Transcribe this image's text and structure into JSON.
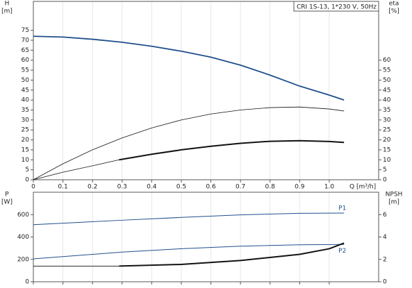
{
  "chart_data": [
    {
      "type": "line",
      "title": "CRI 1S-13, 1*230 V, 50Hz",
      "ylabel": "H",
      "yunit": "[m]",
      "y2label": "eta",
      "y2unit": "[%]",
      "xlabel": "Q [m³/h]",
      "xlim": [
        0,
        1.167
      ],
      "xticks": [
        0,
        0.1,
        0.2,
        0.3,
        0.4,
        0.5,
        0.6,
        0.7,
        0.8,
        0.9,
        {
          "value": 1,
          "label": "1.0"
        }
      ],
      "ylim": [
        0,
        89.5
      ],
      "yticks": [
        0,
        5,
        10,
        15,
        20,
        25,
        30,
        35,
        40,
        45,
        50,
        55,
        60,
        65,
        70,
        75
      ],
      "y2lim": [
        0,
        89.5
      ],
      "y2ticks": [
        0,
        5,
        10,
        15,
        20,
        25,
        30,
        35,
        40,
        45,
        50,
        55,
        60
      ],
      "grid": true,
      "series": [
        {
          "color": "#1f4e8c",
          "width": 1.8,
          "x": [
            0,
            0.1,
            0.2,
            0.3,
            0.4,
            0.5,
            0.6,
            0.7,
            0.8,
            0.9,
            1.0,
            1.05
          ],
          "values": [
            72,
            71.6,
            70.5,
            69,
            67,
            64.5,
            61.5,
            57.5,
            52.5,
            47,
            42.5,
            40
          ]
        },
        {
          "color": "#111111",
          "width": 0.8,
          "axis": "y2",
          "x": [
            0,
            0.1,
            0.2,
            0.3,
            0.4,
            0.5,
            0.6,
            0.7,
            0.8,
            0.9,
            1.0,
            1.05
          ],
          "values": [
            0,
            8,
            15,
            21,
            26,
            30,
            33,
            35,
            36.2,
            36.5,
            35.5,
            34.5
          ]
        },
        {
          "color": "#111111",
          "width": 0.8,
          "axis": "y2",
          "x": [
            0,
            0.1,
            0.2,
            0.29
          ],
          "values": [
            0,
            3.8,
            7,
            10
          ]
        },
        {
          "color": "#111111",
          "width": 2,
          "axis": "y2",
          "x": [
            0.29,
            0.4,
            0.5,
            0.6,
            0.7,
            0.8,
            0.9,
            1.0,
            1.05
          ],
          "values": [
            10,
            12.8,
            15,
            16.8,
            18.3,
            19.3,
            19.6,
            19.2,
            18.7
          ]
        }
      ]
    },
    {
      "type": "line",
      "ylabel": "P",
      "yunit": "[W]",
      "y2label": "NPSH",
      "y2unit": "[m]",
      "xlim": [
        0,
        1.167
      ],
      "xticks": [
        0,
        0.1,
        0.2,
        0.3,
        0.4,
        0.5,
        0.6,
        0.7,
        0.8,
        0.9,
        1
      ],
      "ylim": [
        0,
        800
      ],
      "yticks": [
        0,
        200,
        400,
        600
      ],
      "y2lim": [
        0,
        8
      ],
      "y2ticks": [
        0,
        2,
        4,
        6
      ],
      "grid": true,
      "series": [
        {
          "name": "P1",
          "color": "#1f4e8c",
          "width": 1,
          "x": [
            0,
            0.3,
            0.5,
            0.7,
            0.9,
            1.05
          ],
          "values": [
            510,
            550,
            575,
            598,
            612,
            614
          ]
        },
        {
          "name": "P2",
          "color": "#1f4e8c",
          "width": 1,
          "x": [
            0,
            0.3,
            0.5,
            0.7,
            0.9,
            1.05
          ],
          "values": [
            205,
            265,
            295,
            318,
            330,
            333
          ]
        },
        {
          "color": "#111111",
          "width": 0.8,
          "axis": "y2",
          "x": [
            0,
            0.29
          ],
          "values": [
            1.4,
            1.4
          ]
        },
        {
          "color": "#111111",
          "width": 2,
          "axis": "y2",
          "x": [
            0.29,
            0.5,
            0.7,
            0.9,
            1.0,
            1.05
          ],
          "values": [
            1.4,
            1.55,
            1.9,
            2.45,
            2.95,
            3.45
          ]
        }
      ]
    }
  ]
}
